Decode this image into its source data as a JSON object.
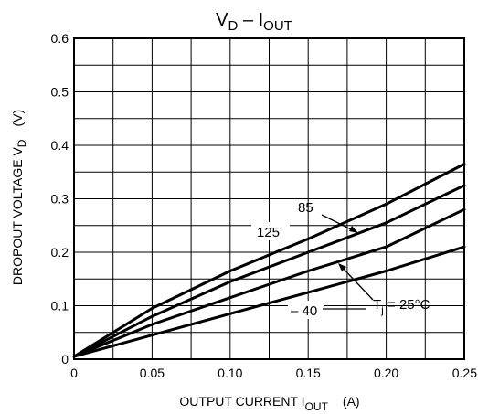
{
  "chart_data": {
    "type": "line",
    "title": {
      "main": "V",
      "sub": "D",
      "sep": " – ",
      "main2": "I",
      "sub2": "OUT"
    },
    "xlabel": {
      "main": "OUTPUT CURRENT   I",
      "sub": "OUT",
      "unit": "(A)"
    },
    "ylabel": {
      "main": "DROPOUT VOLTAGE   V",
      "sub": "D",
      "unit": "(V)"
    },
    "xlim": [
      0,
      0.25
    ],
    "ylim": [
      0,
      0.6
    ],
    "x_ticks": [
      "0",
      "0.05",
      "0.10",
      "0.15",
      "0.20",
      "0.25"
    ],
    "y_ticks": [
      "0",
      "0.1",
      "0.2",
      "0.3",
      "0.4",
      "0.5",
      "0.6"
    ],
    "grid": true,
    "series": [
      {
        "name": "125",
        "x": [
          0,
          0.05,
          0.1,
          0.15,
          0.2,
          0.25
        ],
        "y": [
          0.005,
          0.095,
          0.165,
          0.225,
          0.29,
          0.365
        ]
      },
      {
        "name": "85",
        "x": [
          0,
          0.05,
          0.1,
          0.15,
          0.2,
          0.25
        ],
        "y": [
          0.005,
          0.08,
          0.145,
          0.2,
          0.255,
          0.325
        ]
      },
      {
        "name": "25",
        "x": [
          0,
          0.05,
          0.1,
          0.15,
          0.2,
          0.25
        ],
        "y": [
          0.005,
          0.065,
          0.115,
          0.165,
          0.21,
          0.28
        ]
      },
      {
        "name": "–40",
        "x": [
          0,
          0.05,
          0.1,
          0.15,
          0.2,
          0.25
        ],
        "y": [
          0.005,
          0.045,
          0.085,
          0.125,
          0.165,
          0.21
        ]
      }
    ],
    "annotations": {
      "t85": "85",
      "t125": "125",
      "tm40": "– 40",
      "tj_main": "T",
      "tj_sub": "j",
      "tj_rest": " = 25°C"
    }
  }
}
